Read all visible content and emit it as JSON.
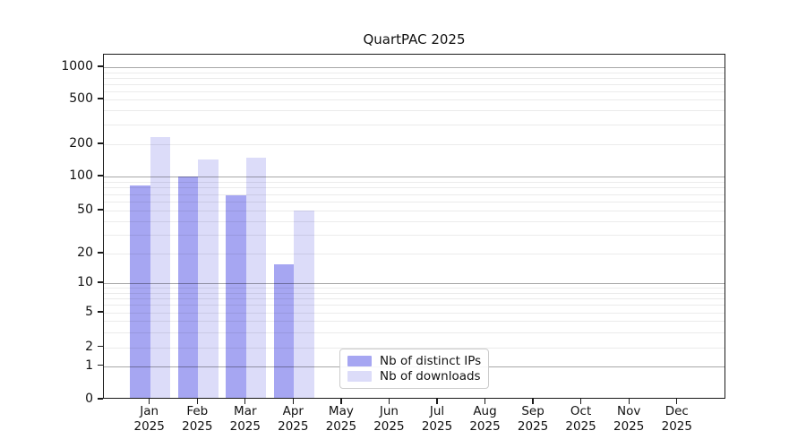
{
  "title": "QuartPAC 2025",
  "axes": {
    "months": [
      "Jan",
      "Feb",
      "Mar",
      "Apr",
      "May",
      "Jun",
      "Jul",
      "Aug",
      "Sep",
      "Oct",
      "Nov",
      "Dec"
    ],
    "year": "2025",
    "yticks": [
      0,
      1,
      2,
      5,
      10,
      20,
      50,
      100,
      200,
      500,
      1000
    ]
  },
  "chart_data": {
    "type": "bar",
    "title": "QuartPAC 2025",
    "categories": [
      "Jan 2025",
      "Feb 2025",
      "Mar 2025",
      "Apr 2025",
      "May 2025",
      "Jun 2025",
      "Jul 2025",
      "Aug 2025",
      "Sep 2025",
      "Oct 2025",
      "Nov 2025",
      "Dec 2025"
    ],
    "series": [
      {
        "name": "Nb of distinct IPs",
        "color": "#a6a6f2",
        "values": [
          81,
          97,
          66,
          15,
          0,
          0,
          0,
          0,
          0,
          0,
          0,
          0
        ]
      },
      {
        "name": "Nb of downloads",
        "color": "#dcdcf9",
        "values": [
          225,
          140,
          145,
          48,
          0,
          0,
          0,
          0,
          0,
          0,
          0,
          0
        ]
      }
    ],
    "yscale": "log",
    "yticks": [
      0,
      1,
      2,
      5,
      10,
      20,
      50,
      100,
      200,
      500,
      1000
    ],
    "ylim": [
      0,
      1500
    ],
    "grid": "horizontal",
    "legend_position": "lower center-left",
    "text_color": "#111111",
    "grid_major_color": "#aaaaaa",
    "grid_minor_color": "#ebebeb"
  }
}
